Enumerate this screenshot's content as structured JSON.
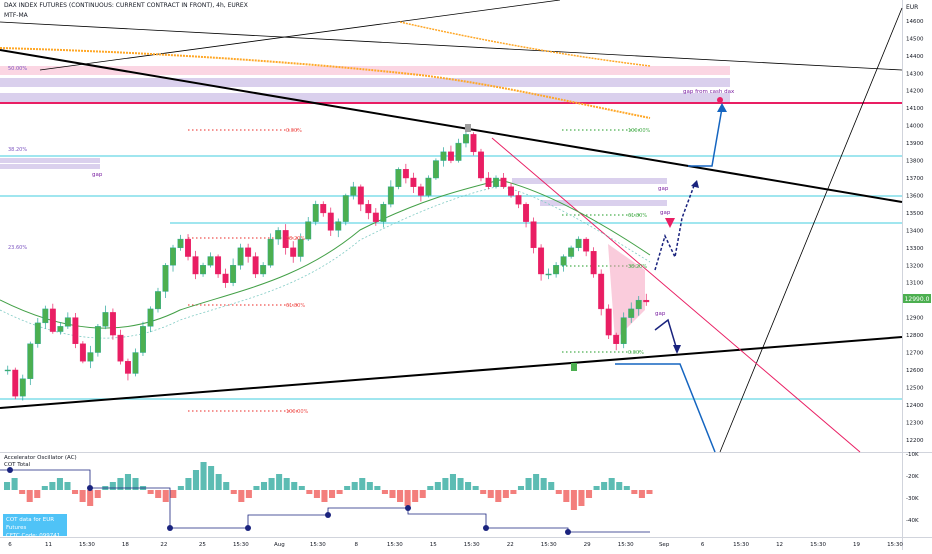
{
  "header": {
    "title": "DAX INDEX FUTURES (CONTINUOUS: CURRENT CONTRACT IN FRONT), 4h, EUREX",
    "indicator": "MTF-MA"
  },
  "price_axis": {
    "currency": "EUR",
    "ticks": [
      "14600",
      "14500",
      "14400",
      "14300",
      "14200",
      "14100",
      "14000",
      "13900",
      "13800",
      "13700",
      "13600",
      "13500",
      "13400",
      "13300",
      "13200",
      "13100",
      "13000",
      "12900",
      "12800",
      "12700",
      "12600",
      "12500",
      "12400",
      "12300",
      "12200"
    ],
    "current_price": "12990.0"
  },
  "time_axis": {
    "ticks": [
      "6",
      "11",
      "15:30",
      "18",
      "22",
      "25",
      "15:30",
      "Aug",
      "15:30",
      "8",
      "15:30",
      "15",
      "15:30",
      "22",
      "15:30",
      "29",
      "15:30",
      "Sep",
      "6",
      "15:30",
      "12",
      "15:30",
      "19",
      "15:30"
    ]
  },
  "annotations": {
    "fib_left": [
      "50.00%",
      "38.20%",
      "23.60%"
    ],
    "fib_mid": [
      "0.00%",
      "38.20%",
      "61.80%",
      "100.00%"
    ],
    "fib_right": [
      "100.00%",
      "61.80%",
      "38.20%",
      "0.00%"
    ],
    "gap_labels": [
      "gap",
      "gap",
      "gap",
      "gap"
    ],
    "gap_from_cash": "gap from cash dax"
  },
  "oscillator": {
    "title": "Accelerator Oscillator (AC)",
    "subtitle": "COT Total",
    "axis_ticks": [
      "-10K",
      "-20K",
      "-30K",
      "-40K"
    ],
    "info_line1": "COT data for EUR Futures",
    "info_line2": "CFTC Code: 099741"
  },
  "colors": {
    "candle_up": "#26a69a",
    "candle_up_fill": "#4caf50",
    "candle_down": "#e91e63",
    "trendline": "#000000",
    "cyan": "#80deea",
    "pink_zone": "#f8bbd0",
    "lavender_zone": "#d1c4e9",
    "orange_ma": "#ffa726",
    "magenta_line": "#e91e63",
    "arrow_blue": "#1565c0",
    "arrow_navy": "#1a237e"
  },
  "chart_data": {
    "type": "candlestick",
    "ylim": [
      12130,
      14720
    ],
    "ylabel": "EUR",
    "close_path": [
      12600,
      12450,
      12550,
      12750,
      12870,
      12950,
      12820,
      12850,
      12900,
      12750,
      12650,
      12700,
      12850,
      12930,
      12800,
      12650,
      12580,
      12700,
      12850,
      12950,
      13050,
      13200,
      13300,
      13350,
      13250,
      13150,
      13200,
      13250,
      13150,
      13100,
      13200,
      13300,
      13250,
      13150,
      13200,
      13350,
      13400,
      13300,
      13250,
      13350,
      13450,
      13550,
      13500,
      13400,
      13450,
      13600,
      13650,
      13550,
      13500,
      13450,
      13550,
      13650,
      13750,
      13700,
      13650,
      13600,
      13700,
      13800,
      13850,
      13800,
      13900,
      13950,
      13850,
      13700,
      13650,
      13700,
      13650,
      13600,
      13550,
      13450,
      13300,
      13150,
      13150,
      13200,
      13250,
      13300,
      13350,
      13280,
      13150,
      12950,
      12800,
      12750,
      12900,
      12950,
      13000,
      12990
    ],
    "oscillator_values": [
      2,
      3,
      -1,
      -3,
      -2,
      1,
      2,
      3,
      2,
      -1,
      -3,
      -4,
      -2,
      1,
      2,
      3,
      4,
      3,
      1,
      -1,
      -2,
      -3,
      -2,
      1,
      3,
      5,
      7,
      6,
      4,
      2,
      -1,
      -3,
      -2,
      1,
      2,
      3,
      4,
      3,
      2,
      1,
      -1,
      -2,
      -3,
      -2,
      -1,
      1,
      2,
      3,
      2,
      1,
      -1,
      -2,
      -3,
      -4,
      -3,
      -2,
      1,
      2,
      3,
      4,
      3,
      2,
      1,
      -1,
      -2,
      -3,
      -2,
      -1,
      1,
      3,
      4,
      3,
      2,
      -1,
      -3,
      -5,
      -4,
      -2,
      1,
      2,
      3,
      2,
      1,
      -1,
      -2,
      -1
    ]
  }
}
